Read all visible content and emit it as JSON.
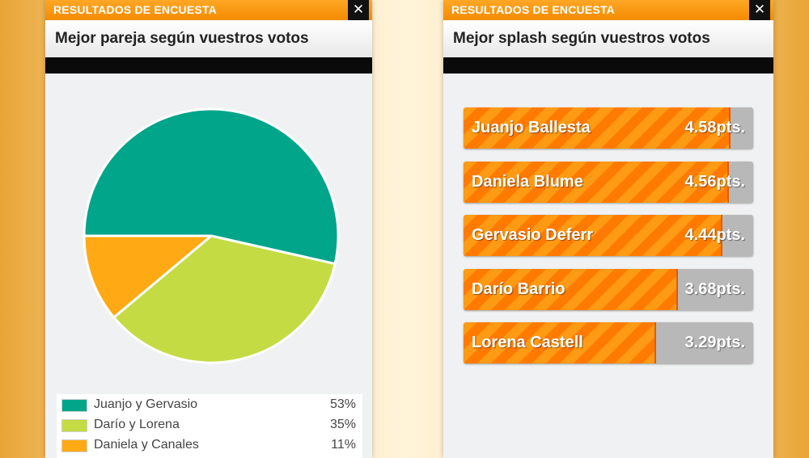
{
  "left_panel": {
    "title": "RESULTADOS DE ENCUESTA",
    "close_label": "✕",
    "header": "Mejor pareja según vuestros votos",
    "legend": [
      {
        "label": "Juanjo y Gervasio",
        "percent": "53%",
        "color": "#00a58a"
      },
      {
        "label": "Darío y Lorena",
        "percent": "35%",
        "color": "#c5db44"
      },
      {
        "label": "Daniela y Canales",
        "percent": "11%",
        "color": "#ffaa14"
      }
    ]
  },
  "chart_data": {
    "type": "pie",
    "categories": [
      "Juanjo y Gervasio",
      "Darío y Lorena",
      "Daniela y Canales"
    ],
    "values": [
      53,
      35,
      11
    ],
    "colors": [
      "#00a58a",
      "#c5db44",
      "#ffaa14"
    ]
  },
  "right_panel": {
    "title": "RESULTADOS DE ENCUESTA",
    "close_label": "✕",
    "header": "Mejor splash según vuestros votos",
    "results": [
      {
        "name": "Juanjo Ballesta",
        "score": "4.58pts.",
        "value": 4.58
      },
      {
        "name": "Daniela Blume",
        "score": "4.56pts.",
        "value": 4.56
      },
      {
        "name": "Gervasio Deferr",
        "score": "4.44pts.",
        "value": 4.44
      },
      {
        "name": "Darío Barrio",
        "score": "3.68pts.",
        "value": 3.68
      },
      {
        "name": "Lorena Castell",
        "score": "3.29pts.",
        "value": 3.29
      }
    ],
    "max_score": 5
  }
}
